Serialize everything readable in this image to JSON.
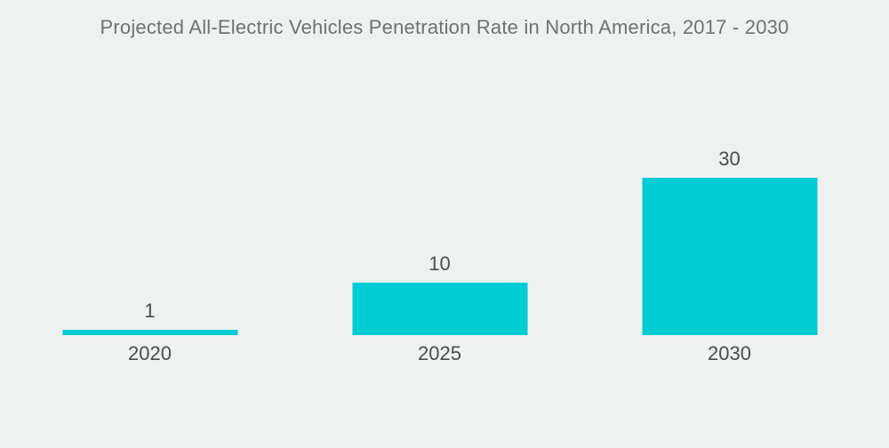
{
  "chart_data": {
    "type": "bar",
    "title": "Projected All-Electric Vehicles Penetration Rate in North America, 2017 - 2030",
    "categories": [
      "2020",
      "2025",
      "2030"
    ],
    "values": [
      1,
      10,
      30
    ],
    "xlabel": "",
    "ylabel": "",
    "ylim": [
      0,
      30
    ],
    "grid": false,
    "legend": "none",
    "value_labels_shown": true,
    "bar_color": "#00ccd3",
    "background_color": "#eff1f1",
    "title_color": "#6e7072",
    "label_color": "#4a4c4d"
  }
}
